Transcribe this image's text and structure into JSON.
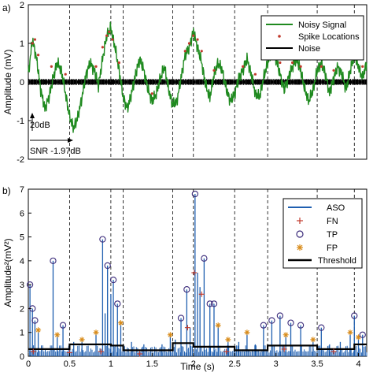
{
  "figure": {
    "panel_a_label": "a)",
    "panel_b_label": "b)"
  },
  "chart_data": [
    {
      "type": "line",
      "panel": "a",
      "ylabel": "Amplitude (mV)",
      "xlabel": "",
      "xlim": [
        0,
        4.1
      ],
      "ylim": [
        -2,
        2
      ],
      "yticks": [
        -2,
        -1,
        0,
        1,
        2
      ],
      "grid": false,
      "legend": {
        "position": "top-right",
        "entries": [
          "Noisy Signal",
          "Spike Locations",
          "Noise"
        ]
      },
      "series": [
        {
          "name": "Noisy Signal",
          "color": "#1f8a1f",
          "x": [
            0,
            0.05,
            0.1,
            0.15,
            0.2,
            0.25,
            0.3,
            0.35,
            0.4,
            0.45,
            0.5,
            0.55,
            0.6,
            0.65,
            0.7,
            0.75,
            0.8,
            0.85,
            0.9,
            0.95,
            1.0,
            1.05,
            1.1,
            1.15,
            1.2,
            1.25,
            1.3,
            1.35,
            1.4,
            1.45,
            1.5,
            1.55,
            1.6,
            1.65,
            1.7,
            1.75,
            1.8,
            1.85,
            1.9,
            1.95,
            2.0,
            2.05,
            2.1,
            2.15,
            2.2,
            2.25,
            2.3,
            2.35,
            2.4,
            2.45,
            2.5,
            2.55,
            2.6,
            2.65,
            2.7,
            2.75,
            2.8,
            2.85,
            2.9,
            2.95,
            3.0,
            3.05,
            3.1,
            3.15,
            3.2,
            3.25,
            3.3,
            3.35,
            3.4,
            3.45,
            3.5,
            3.55,
            3.6,
            3.65,
            3.7,
            3.75,
            3.8,
            3.85,
            3.9,
            3.95,
            4.0,
            4.05,
            4.1
          ],
          "y": [
            0.2,
            1.1,
            0.6,
            -0.2,
            -0.7,
            -0.4,
            0.1,
            0.5,
            0.3,
            -0.3,
            -0.9,
            -1.2,
            -0.9,
            -0.4,
            0.2,
            0.5,
            0.3,
            -0.1,
            0.6,
            1.2,
            1.4,
            0.9,
            0.3,
            -0.4,
            -0.7,
            -0.3,
            0.2,
            0.6,
            0.3,
            -0.2,
            -0.5,
            -0.3,
            0.1,
            0.4,
            -0.2,
            -0.6,
            -0.5,
            0.1,
            0.7,
            0.9,
            1.3,
            0.9,
            0.5,
            -0.1,
            -0.4,
            0.2,
            0.5,
            0.3,
            -0.2,
            -0.5,
            -0.3,
            0.1,
            0.3,
            0.6,
            0.2,
            -0.3,
            -0.4,
            0.1,
            0.5,
            0.8,
            0.6,
            0.2,
            -0.2,
            0.1,
            0.4,
            0.6,
            0.3,
            -0.2,
            -0.5,
            -0.2,
            0.3,
            0.5,
            0.2,
            -0.3,
            0.1,
            0.4,
            0.2,
            -0.2,
            0.3,
            0.7,
            0.4,
            0.1,
            0.5
          ]
        },
        {
          "name": "Spike Locations",
          "color": "#c0392b",
          "x": [
            0.05,
            0.08,
            0.12,
            0.28,
            0.45,
            0.82,
            0.9,
            0.95,
            0.98,
            1.02,
            1.1,
            1.5,
            1.9,
            1.95,
            2.0,
            2.05,
            2.1,
            2.25,
            2.6,
            2.75,
            2.95,
            3.05,
            3.2,
            3.3,
            3.55,
            3.7,
            3.9,
            3.95,
            4.05
          ],
          "y": [
            1.0,
            1.1,
            0.7,
            0.4,
            0.2,
            0.4,
            0.9,
            1.2,
            1.3,
            1.1,
            0.5,
            -0.3,
            0.8,
            1.0,
            1.2,
            1.1,
            0.8,
            0.3,
            0.4,
            0.2,
            0.7,
            0.5,
            0.5,
            0.4,
            0.4,
            0.3,
            0.6,
            0.6,
            0.4
          ]
        },
        {
          "name": "Noise",
          "color": "#000000",
          "amplitude": 0.08
        }
      ],
      "vlines_x": [
        0.5,
        1.0,
        1.15,
        1.75,
        2.0,
        2.5,
        2.9,
        3.5,
        3.95
      ],
      "annotations": {
        "scale_bar": "20dB",
        "snr": "SNR -1.97dB"
      }
    },
    {
      "type": "line",
      "panel": "b",
      "ylabel": "Amplitude²(mV²)",
      "xlabel": "Time (s)",
      "xlim": [
        0,
        4.1
      ],
      "ylim": [
        0,
        7
      ],
      "yticks": [
        0,
        1,
        2,
        3,
        4,
        5,
        6,
        7
      ],
      "xticks": [
        0,
        0.5,
        1,
        1.5,
        2,
        2.5,
        3,
        3.5,
        4
      ],
      "xtick_labels": [
        "0",
        "0.5",
        "1",
        "1.5",
        "2",
        "2.5",
        "3",
        "3.5",
        "4"
      ],
      "grid": false,
      "legend": {
        "position": "top-right",
        "entries": [
          "ASO",
          "FN",
          "TP",
          "FP",
          "Threshold"
        ]
      },
      "aso_color": "#1f5fb0",
      "aso_spikes": [
        {
          "x": 0.02,
          "y": 3.0
        },
        {
          "x": 0.05,
          "y": 2.0
        },
        {
          "x": 0.08,
          "y": 1.5
        },
        {
          "x": 0.12,
          "y": 1.1
        },
        {
          "x": 0.3,
          "y": 4.0
        },
        {
          "x": 0.35,
          "y": 0.9
        },
        {
          "x": 0.42,
          "y": 1.3
        },
        {
          "x": 0.55,
          "y": 0.6
        },
        {
          "x": 0.65,
          "y": 0.7
        },
        {
          "x": 0.82,
          "y": 1.0
        },
        {
          "x": 0.9,
          "y": 4.9
        },
        {
          "x": 0.93,
          "y": 1.8
        },
        {
          "x": 0.96,
          "y": 3.8
        },
        {
          "x": 1.0,
          "y": 2.6
        },
        {
          "x": 1.03,
          "y": 3.2
        },
        {
          "x": 1.08,
          "y": 2.2
        },
        {
          "x": 1.12,
          "y": 1.4
        },
        {
          "x": 1.25,
          "y": 0.6
        },
        {
          "x": 1.4,
          "y": 0.5
        },
        {
          "x": 1.62,
          "y": 0.5
        },
        {
          "x": 1.72,
          "y": 0.9
        },
        {
          "x": 1.78,
          "y": 0.7
        },
        {
          "x": 1.85,
          "y": 1.6
        },
        {
          "x": 1.92,
          "y": 2.8
        },
        {
          "x": 1.96,
          "y": 1.2
        },
        {
          "x": 2.02,
          "y": 6.8
        },
        {
          "x": 2.05,
          "y": 3.5
        },
        {
          "x": 2.08,
          "y": 2.9
        },
        {
          "x": 2.13,
          "y": 4.1
        },
        {
          "x": 2.2,
          "y": 2.2
        },
        {
          "x": 2.25,
          "y": 2.2
        },
        {
          "x": 2.3,
          "y": 1.3
        },
        {
          "x": 2.42,
          "y": 0.7
        },
        {
          "x": 2.55,
          "y": 0.6
        },
        {
          "x": 2.65,
          "y": 1.0
        },
        {
          "x": 2.75,
          "y": 0.5
        },
        {
          "x": 2.85,
          "y": 1.3
        },
        {
          "x": 2.95,
          "y": 1.5
        },
        {
          "x": 3.05,
          "y": 1.7
        },
        {
          "x": 3.12,
          "y": 0.9
        },
        {
          "x": 3.18,
          "y": 1.4
        },
        {
          "x": 3.3,
          "y": 1.3
        },
        {
          "x": 3.45,
          "y": 0.7
        },
        {
          "x": 3.55,
          "y": 1.2
        },
        {
          "x": 3.65,
          "y": 0.5
        },
        {
          "x": 3.78,
          "y": 0.6
        },
        {
          "x": 3.9,
          "y": 1.0
        },
        {
          "x": 3.95,
          "y": 1.7
        },
        {
          "x": 4.0,
          "y": 0.8
        },
        {
          "x": 4.05,
          "y": 0.9
        }
      ],
      "markers": {
        "FN": {
          "color": "#c0392b",
          "x": [
            0.06,
            0.5,
            0.88,
            1.35,
            1.93,
            2.01,
            2.1,
            2.4,
            3.1,
            3.7
          ],
          "y": [
            0.2,
            0.15,
            0.2,
            0.1,
            1.2,
            3.5,
            2.6,
            0.2,
            0.3,
            0.2
          ]
        },
        "TP": {
          "color": "#3a2a7a",
          "x": [
            0.02,
            0.05,
            0.08,
            0.3,
            0.42,
            0.9,
            0.96,
            1.03,
            1.08,
            1.85,
            1.92,
            2.02,
            2.13,
            2.2,
            2.25,
            2.85,
            2.95,
            3.05,
            3.18,
            3.3,
            3.55,
            3.95,
            4.05
          ],
          "y": [
            3.0,
            2.0,
            1.5,
            4.0,
            1.3,
            4.9,
            3.8,
            3.2,
            2.2,
            1.6,
            2.8,
            6.8,
            4.1,
            2.2,
            2.2,
            1.3,
            1.5,
            1.7,
            1.4,
            1.3,
            1.2,
            1.7,
            0.9
          ]
        },
        "FP": {
          "color": "#d98c1a",
          "x": [
            0.12,
            0.35,
            0.65,
            0.82,
            1.12,
            1.72,
            2.3,
            2.42,
            2.65,
            3.12,
            3.45,
            3.9,
            4.0
          ],
          "y": [
            1.1,
            0.9,
            0.7,
            1.0,
            1.4,
            0.9,
            1.3,
            0.7,
            1.0,
            0.9,
            0.7,
            1.0,
            0.8
          ]
        }
      },
      "threshold": {
        "color": "#000000",
        "x": [
          0,
          0.5,
          0.5,
          1.0,
          1.0,
          1.15,
          1.15,
          1.75,
          1.75,
          2.0,
          2.0,
          2.5,
          2.5,
          2.9,
          2.9,
          3.5,
          3.5,
          3.95,
          3.95,
          4.1
        ],
        "y": [
          0.3,
          0.3,
          0.5,
          0.5,
          0.45,
          0.45,
          0.25,
          0.25,
          0.55,
          0.55,
          0.4,
          0.4,
          0.25,
          0.25,
          0.45,
          0.45,
          0.3,
          0.3,
          0.5,
          0.5
        ]
      },
      "vlines_x": [
        0.5,
        1.0,
        1.15,
        1.75,
        2.0,
        2.5,
        2.9,
        3.5,
        3.95
      ]
    }
  ]
}
